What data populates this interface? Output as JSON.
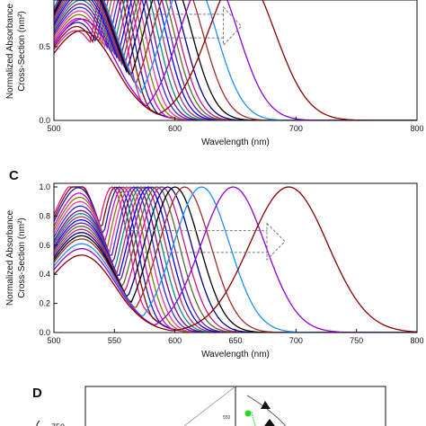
{
  "panels": {
    "c": {
      "label": "C"
    },
    "d": {
      "label": "D",
      "y_tick_visible": "750",
      "inset_tick": "550"
    }
  },
  "colors": [
    "#e8158c",
    "#7a0f0f",
    "#1a1aa0",
    "#d600d6",
    "#7f7f00",
    "#ff3399",
    "#2a2ad8",
    "#800080",
    "#008b8b",
    "#b03060",
    "#0000ff",
    "#6a1b9a",
    "#556b2f",
    "#c71585",
    "#00008b",
    "#000000",
    "#a52a2a",
    "#1e90ff",
    "#9400d3",
    "#8b0000"
  ],
  "chart_data": [
    {
      "type": "line",
      "panel": "B",
      "xlabel": "Wavelength (nm)",
      "ylabel_line1": "Normalized Absorbance",
      "ylabel_line2": "Cross-Section (nm²)",
      "xlim": [
        500,
        800
      ],
      "ylim": [
        0.0,
        1.0
      ],
      "x_ticks": [
        "500",
        "600",
        "700",
        "800"
      ],
      "y_ticks": [
        "0.0",
        "0.5"
      ],
      "peak_wavelengths": [
        545,
        548,
        551,
        554,
        557,
        560,
        563,
        566,
        569,
        572,
        575,
        578,
        581,
        584,
        588,
        594,
        602,
        612,
        628,
        655
      ],
      "shoulder_heights": [
        0.58,
        0.6,
        0.62,
        0.64,
        0.66,
        0.68,
        0.7,
        0.72,
        0.74,
        0.76,
        0.78,
        0.8,
        0.82,
        0.84,
        0.86,
        0.88,
        0.9,
        0.92,
        0.62,
        0.55
      ],
      "annotation": "dashed arrows indicating red-shift"
    },
    {
      "type": "line",
      "panel": "C",
      "xlabel": "Wavelength (nm)",
      "ylabel_line1": "Normalized Absorbance",
      "ylabel_line2": "Cross-Section (nm²)",
      "xlim": [
        500,
        800
      ],
      "ylim": [
        0.0,
        1.0
      ],
      "x_ticks": [
        "500",
        "550",
        "600",
        "650",
        "700",
        "750",
        "800"
      ],
      "y_ticks": [
        "0.0",
        "0.2",
        "0.4",
        "0.6",
        "0.8",
        "1.0"
      ],
      "peak_wavelengths": [
        548,
        551,
        554,
        557,
        560,
        563,
        566,
        569,
        572,
        575,
        578,
        581,
        585,
        589,
        594,
        600,
        608,
        622,
        648,
        694
      ],
      "shoulder_heights": [
        0.98,
        0.95,
        0.92,
        0.88,
        0.85,
        0.82,
        0.79,
        0.76,
        0.74,
        0.72,
        0.7,
        0.68,
        0.66,
        0.64,
        0.62,
        0.6,
        0.58,
        0.55,
        0.52,
        0.48
      ],
      "annotation": "dashed arrows indicating red-shift"
    }
  ]
}
